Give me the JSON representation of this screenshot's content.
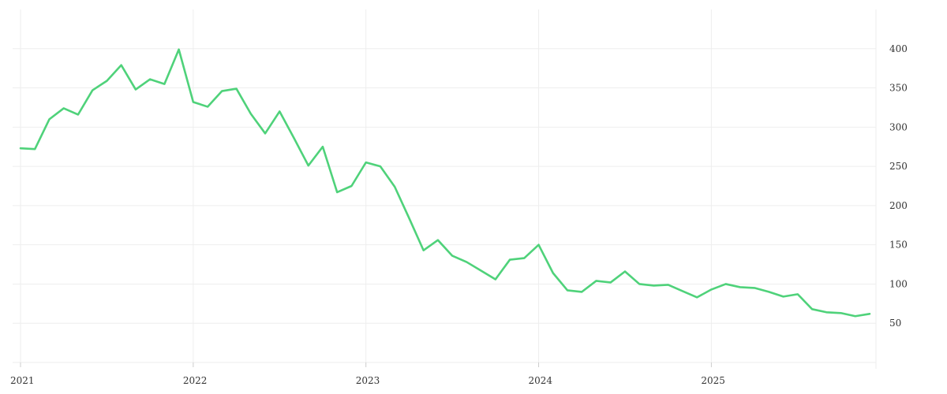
{
  "chart_data": {
    "type": "line",
    "title": "",
    "xlabel": "",
    "ylabel": "",
    "x_ticks": [
      "2021",
      "2022",
      "2023",
      "2024",
      "2025"
    ],
    "y_ticks": [
      50,
      100,
      150,
      200,
      250,
      300,
      350,
      400
    ],
    "ylim": [
      0,
      450
    ],
    "xlim": [
      "2021-01",
      "2025-12"
    ],
    "grid": true,
    "y_axis_position": "right",
    "colors": {
      "series": "#4fd27a",
      "grid": "#eeeeee",
      "text": "#333333"
    },
    "series": [
      {
        "x": [
          "2021-01",
          "2021-02",
          "2021-03",
          "2021-04",
          "2021-05",
          "2021-06",
          "2021-07",
          "2021-08",
          "2021-09",
          "2021-10",
          "2021-11",
          "2021-12",
          "2022-01",
          "2022-02",
          "2022-03",
          "2022-04",
          "2022-05",
          "2022-06",
          "2022-07",
          "2022-08",
          "2022-09",
          "2022-10",
          "2022-11",
          "2022-12",
          "2023-01",
          "2023-02",
          "2023-03",
          "2023-04",
          "2023-05",
          "2023-06",
          "2023-07",
          "2023-08",
          "2023-09",
          "2023-10",
          "2023-11",
          "2023-12",
          "2024-01",
          "2024-02",
          "2024-03",
          "2024-04",
          "2024-05",
          "2024-06",
          "2024-07",
          "2024-08",
          "2024-09",
          "2024-10",
          "2024-11",
          "2024-12",
          "2025-01",
          "2025-02",
          "2025-03",
          "2025-04",
          "2025-05",
          "2025-06",
          "2025-07",
          "2025-08",
          "2025-09",
          "2025-10",
          "2025-11",
          "2025-12"
        ],
        "values": [
          273,
          272,
          310,
          324,
          316,
          347,
          359,
          379,
          348,
          361,
          355,
          399,
          332,
          326,
          346,
          349,
          317,
          292,
          320,
          286,
          251,
          275,
          217,
          225,
          255,
          250,
          224,
          184,
          143,
          156,
          136,
          128,
          117,
          106,
          131,
          133,
          150,
          114,
          92,
          90,
          104,
          102,
          116,
          100,
          98,
          99,
          91,
          83,
          93,
          100,
          96,
          95,
          90,
          84,
          87,
          68,
          64,
          63,
          59,
          62
        ]
      }
    ]
  }
}
